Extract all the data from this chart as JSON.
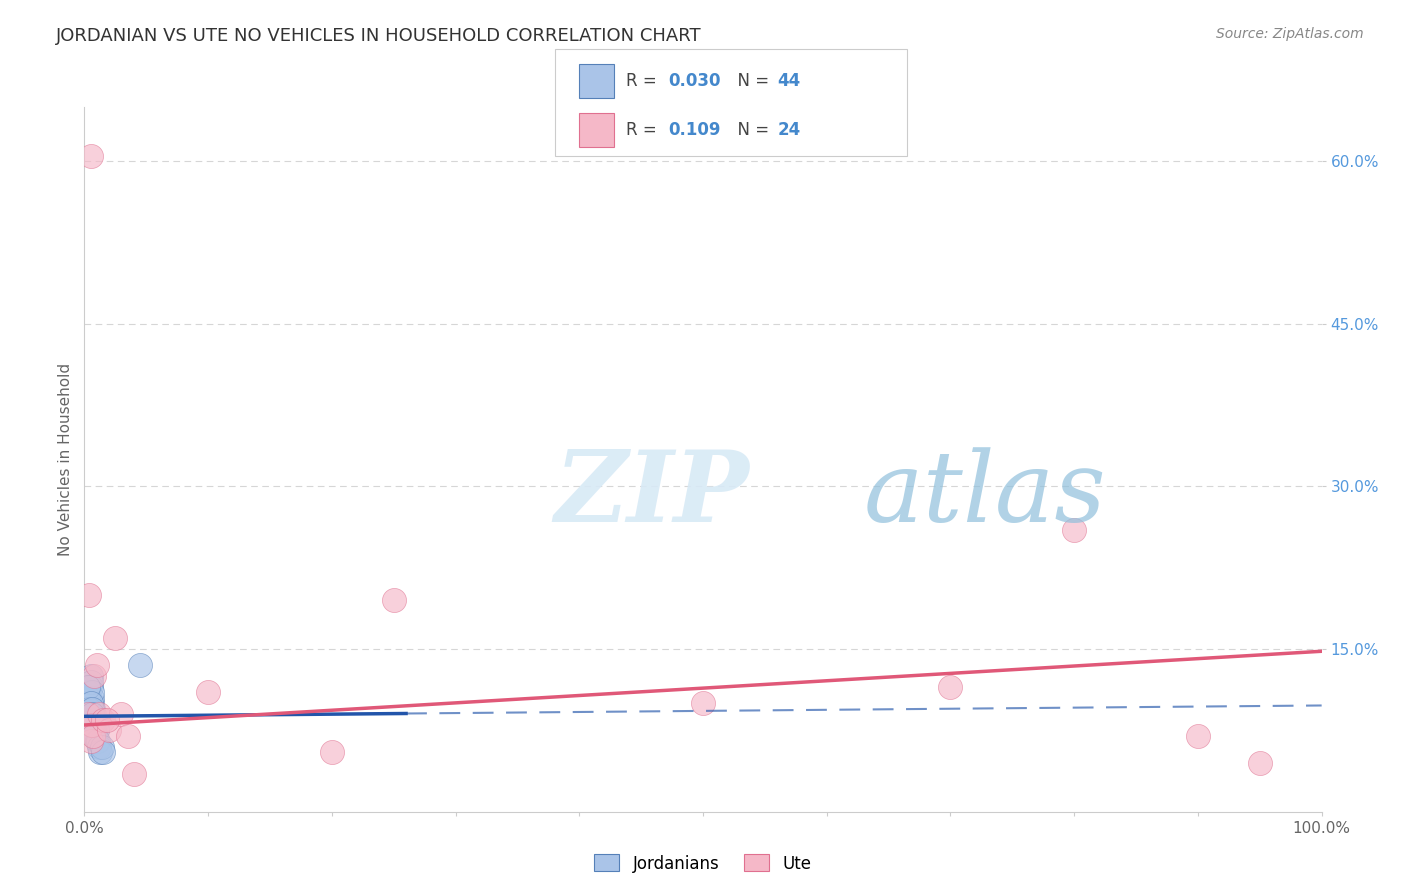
{
  "title": "JORDANIAN VS UTE NO VEHICLES IN HOUSEHOLD CORRELATION CHART",
  "source_text": "Source: ZipAtlas.com",
  "ylabel": "No Vehicles in Household",
  "xlim": [
    0,
    100
  ],
  "ylim": [
    0,
    65
  ],
  "ytick_positions": [
    15,
    30,
    45,
    60
  ],
  "ytick_labels": [
    "15.0%",
    "30.0%",
    "45.0%",
    "60.0%"
  ],
  "color_jordanian_fill": "#aac4e8",
  "color_jordanian_edge": "#5580b8",
  "color_jordanian_line": "#2255aa",
  "color_ute_fill": "#f5b8c8",
  "color_ute_edge": "#e07090",
  "color_ute_line": "#e05878",
  "background_color": "#ffffff",
  "grid_color": "#cccccc",
  "jordanian_x": [
    0.3,
    0.4,
    0.5,
    0.5,
    0.6,
    0.6,
    0.7,
    0.7,
    0.8,
    0.8,
    0.9,
    0.9,
    1.0,
    1.0,
    0.3,
    0.4,
    0.5,
    0.6,
    0.7,
    0.8,
    0.9,
    1.0,
    0.3,
    0.4,
    0.5,
    0.6,
    0.7,
    0.8,
    0.3,
    0.4,
    0.5,
    0.6,
    0.7,
    0.8,
    0.9,
    1.0,
    1.1,
    1.2,
    1.3,
    1.4,
    1.5,
    4.5,
    0.5,
    0.6
  ],
  "jordanian_y": [
    10.5,
    9.5,
    9.0,
    12.5,
    8.5,
    10.0,
    9.0,
    9.5,
    8.5,
    9.0,
    8.0,
    7.5,
    8.0,
    7.5,
    11.0,
    10.0,
    11.5,
    10.5,
    8.0,
    7.0,
    7.5,
    7.5,
    10.5,
    9.0,
    12.0,
    11.0,
    8.5,
    7.0,
    11.5,
    9.5,
    10.0,
    9.5,
    8.0,
    7.5,
    7.0,
    6.5,
    6.5,
    6.0,
    5.5,
    6.0,
    5.5,
    13.5,
    8.0,
    9.0
  ],
  "jordanian_sizes": [
    600,
    400,
    400,
    400,
    400,
    400,
    400,
    400,
    400,
    400,
    400,
    400,
    400,
    400,
    400,
    400,
    400,
    400,
    400,
    400,
    400,
    400,
    400,
    400,
    400,
    400,
    400,
    400,
    400,
    400,
    400,
    400,
    400,
    400,
    400,
    400,
    400,
    400,
    400,
    400,
    400,
    500,
    400,
    400
  ],
  "ute_x": [
    0.3,
    0.4,
    0.5,
    0.6,
    0.7,
    0.8,
    1.0,
    1.2,
    1.5,
    2.0,
    2.5,
    3.0,
    4.0,
    10.0,
    20.0,
    25.0,
    50.0,
    70.0,
    80.0,
    90.0,
    95.0,
    0.5,
    1.8,
    3.5
  ],
  "ute_y": [
    9.0,
    20.0,
    6.5,
    8.0,
    7.0,
    12.5,
    13.5,
    9.0,
    8.5,
    7.5,
    16.0,
    9.0,
    3.5,
    11.0,
    5.5,
    19.5,
    10.0,
    11.5,
    26.0,
    7.0,
    4.5,
    60.5,
    8.5,
    7.0
  ],
  "ute_sizes": [
    400,
    400,
    400,
    400,
    400,
    400,
    400,
    400,
    400,
    400,
    400,
    400,
    400,
    400,
    400,
    400,
    400,
    400,
    400,
    400,
    400,
    500,
    400,
    400
  ],
  "jord_line_x0": 0,
  "jord_line_x1": 100,
  "jord_line_y0": 8.8,
  "jord_line_y1": 9.8,
  "jord_solid_x0": 0,
  "jord_solid_x1": 26,
  "ute_line_x0": 0,
  "ute_line_x1": 100,
  "ute_line_y0": 8.0,
  "ute_line_y1": 14.8,
  "watermark_zip": "ZIP",
  "watermark_atlas": "atlas",
  "watermark_color_zip": "#d5e8f5",
  "watermark_color_atlas": "#80bce0"
}
